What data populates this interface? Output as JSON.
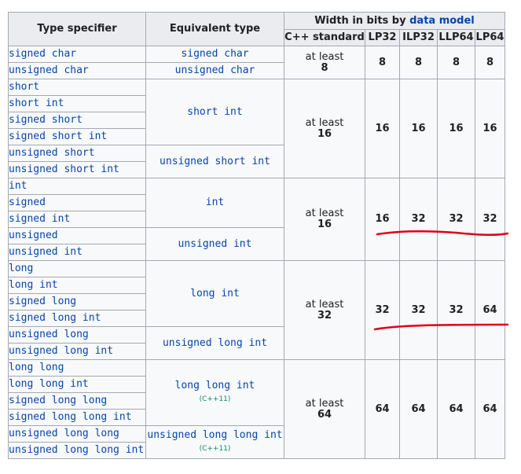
{
  "headers": {
    "type_specifier": "Type specifier",
    "equivalent_type": "Equivalent type",
    "width_prefix": "Width in bits by",
    "data_model_link": "data model",
    "cpp_standard": "C++ standard",
    "models": [
      "LP32",
      "ILP32",
      "LLP64",
      "LP64"
    ]
  },
  "groups": [
    {
      "standard_prefix": "at least",
      "standard_bits": "8",
      "widths": [
        "8",
        "8",
        "8",
        "8"
      ],
      "equivs": [
        {
          "type": "signed char",
          "specifiers": [
            "signed char"
          ]
        },
        {
          "type": "unsigned char",
          "specifiers": [
            "unsigned char"
          ]
        }
      ]
    },
    {
      "standard_prefix": "at least",
      "standard_bits": "16",
      "widths": [
        "16",
        "16",
        "16",
        "16"
      ],
      "equivs": [
        {
          "type": "short int",
          "specifiers": [
            "short",
            "short int",
            "signed short",
            "signed short int"
          ]
        },
        {
          "type": "unsigned short int",
          "specifiers": [
            "unsigned short",
            "unsigned short int"
          ]
        }
      ]
    },
    {
      "standard_prefix": "at least",
      "standard_bits": "16",
      "widths": [
        "16",
        "32",
        "32",
        "32"
      ],
      "equivs": [
        {
          "type": "int",
          "specifiers": [
            "int",
            "signed",
            "signed int"
          ]
        },
        {
          "type": "unsigned int",
          "specifiers": [
            "unsigned",
            "unsigned int"
          ]
        }
      ]
    },
    {
      "standard_prefix": "at least",
      "standard_bits": "32",
      "widths": [
        "32",
        "32",
        "32",
        "64"
      ],
      "equivs": [
        {
          "type": "long int",
          "specifiers": [
            "long",
            "long int",
            "signed long",
            "signed long int"
          ]
        },
        {
          "type": "unsigned long int",
          "specifiers": [
            "unsigned long",
            "unsigned long int"
          ]
        }
      ]
    },
    {
      "standard_prefix": "at least",
      "standard_bits": "64",
      "widths": [
        "64",
        "64",
        "64",
        "64"
      ],
      "equivs": [
        {
          "type": "long long int",
          "note": "(C++11)",
          "specifiers": [
            "long long",
            "long long int",
            "signed long long",
            "signed long long int"
          ]
        },
        {
          "type": "unsigned long long int",
          "note": "(C++11)",
          "specifiers": [
            "unsigned long long",
            "unsigned long long int"
          ]
        }
      ]
    }
  ],
  "annotation_color": "#e0001b"
}
